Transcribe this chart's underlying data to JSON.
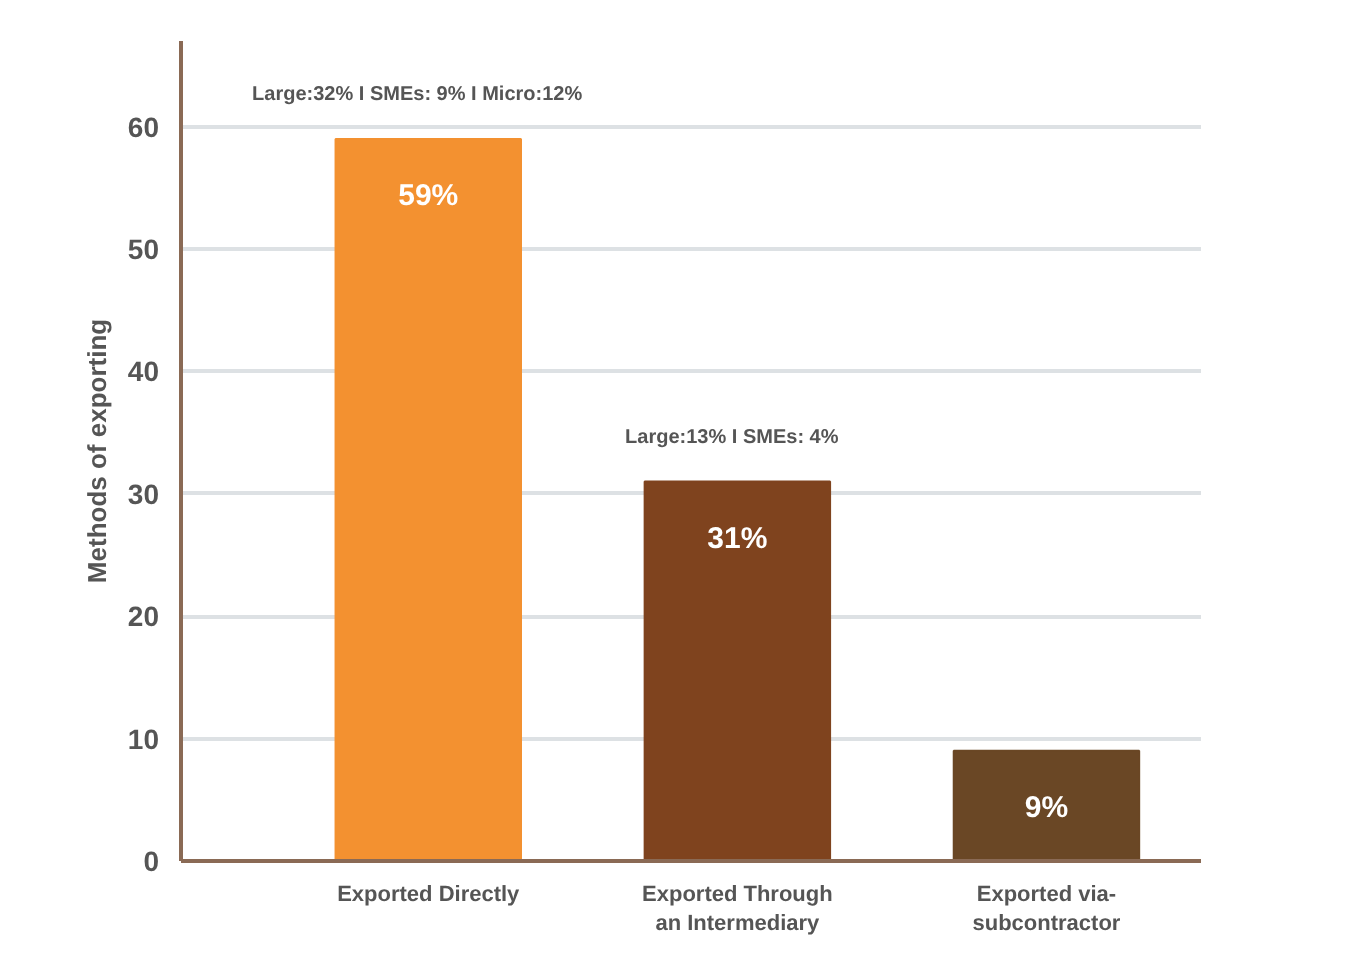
{
  "chart_data": {
    "type": "bar",
    "ylabel": "Methods of exporting",
    "categories": [
      "Exported Directly",
      "Exported Through\nan Intermediary",
      "Exported via-\nsubcontractor"
    ],
    "values": [
      59,
      31,
      9
    ],
    "colors": [
      "#f39130",
      "#7f431e",
      "#6a4725"
    ],
    "value_labels": [
      "59%",
      "31%",
      "9%"
    ],
    "annotations": [
      "Large:32%  I  SMEs: 9%  I  Micro:12%",
      "Large:13%  I  SMEs: 4%"
    ],
    "ylim": [
      0,
      67
    ],
    "yticks": [
      0,
      10,
      20,
      30,
      40,
      50,
      60
    ],
    "grid": "y"
  }
}
